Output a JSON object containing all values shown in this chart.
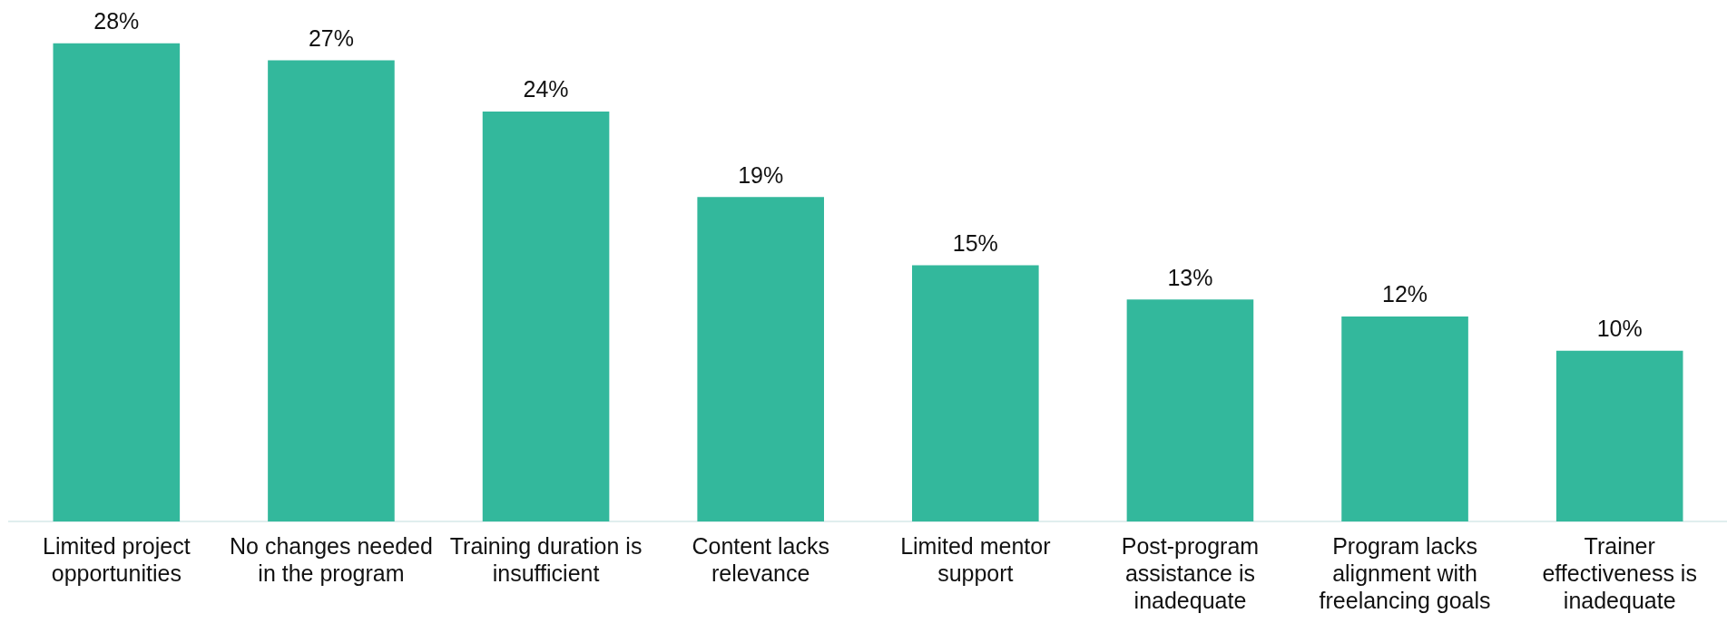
{
  "chart_data": {
    "type": "bar",
    "categories": [
      "Limited project opportunities",
      "No changes needed in the program",
      "Training duration is insufficient",
      "Content lacks relevance",
      "Limited mentor support",
      "Post-program assistance is inadequate",
      "Program lacks alignment with freelancing goals",
      "Trainer effectiveness is inadequate"
    ],
    "values": [
      28,
      27,
      24,
      19,
      15,
      13,
      12,
      10
    ],
    "value_labels": [
      "28%",
      "27%",
      "24%",
      "19%",
      "15%",
      "13%",
      "12%",
      "10%"
    ],
    "color": "#33b89c",
    "grid": false,
    "legend": false
  }
}
